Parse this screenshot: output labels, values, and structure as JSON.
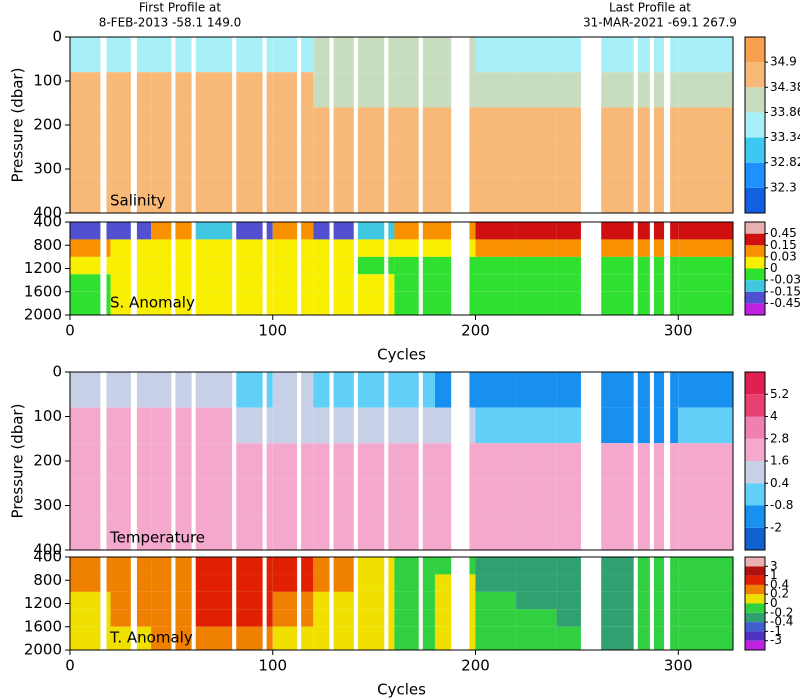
{
  "header": {
    "first_title": "First Profile at",
    "first_info": "8-FEB-2013   -58.1 149.0",
    "last_title": "Last Profile at",
    "last_info": "31-MAR-2021   -69.1 267.9"
  },
  "missing_cycles": [
    [
      15,
      18
    ],
    [
      30,
      33
    ],
    [
      50,
      52
    ],
    [
      60,
      62
    ],
    [
      80,
      82
    ],
    [
      95,
      97
    ],
    [
      112,
      114
    ],
    [
      128,
      130
    ],
    [
      140,
      142
    ],
    [
      155,
      157
    ],
    [
      172,
      174
    ],
    [
      188,
      197
    ],
    [
      252,
      262
    ],
    [
      278,
      280
    ],
    [
      286,
      288
    ],
    [
      293,
      296
    ]
  ],
  "chart_data": [
    {
      "type": "heatmap",
      "label": "Salinity",
      "ylabel": "Pressure (dbar)",
      "xlim": [
        0,
        327
      ],
      "ylim": [
        0,
        400
      ],
      "yticks": [
        0,
        100,
        200,
        300,
        400
      ],
      "x_edges": [
        0,
        20,
        40,
        60,
        80,
        100,
        120,
        140,
        160,
        180,
        200,
        220,
        240,
        260,
        280,
        300,
        327
      ],
      "y_edges": [
        0,
        80,
        160,
        240,
        320,
        400
      ],
      "levels": [
        32.3,
        32.82,
        33.34,
        33.86,
        34.38,
        34.9
      ],
      "colors": [
        "#1060e0",
        "#1e90ff",
        "#3cc8f0",
        "#a8f0f8",
        "#c8dcc0",
        "#f8b878",
        "#f8a050"
      ],
      "values": [
        [
          33.6,
          33.6,
          33.6,
          33.7,
          33.6,
          33.8,
          33.9,
          33.9,
          33.9,
          33.9,
          33.5,
          33.5,
          33.4,
          33.4,
          33.4,
          33.6
        ],
        [
          34.5,
          34.5,
          34.4,
          34.4,
          34.5,
          34.4,
          34.2,
          33.9,
          33.95,
          34.0,
          34.1,
          34.0,
          33.9,
          33.9,
          33.9,
          34.0
        ],
        [
          34.7,
          34.7,
          34.7,
          34.7,
          34.7,
          34.7,
          34.6,
          34.5,
          34.6,
          34.6,
          34.6,
          34.6,
          34.5,
          34.5,
          34.5,
          34.5
        ],
        [
          34.7,
          34.7,
          34.7,
          34.7,
          34.7,
          34.7,
          34.7,
          34.7,
          34.7,
          34.7,
          34.7,
          34.7,
          34.7,
          34.7,
          34.7,
          34.7
        ],
        [
          34.7,
          34.7,
          34.7,
          34.7,
          34.7,
          34.7,
          34.7,
          34.7,
          34.7,
          34.7,
          34.7,
          34.7,
          34.7,
          34.7,
          34.7,
          34.7
        ]
      ]
    },
    {
      "type": "heatmap",
      "label": "S. Anomaly",
      "xlabel": "Cycles",
      "xlim": [
        0,
        327
      ],
      "xticks": [
        0,
        100,
        200,
        300
      ],
      "ylim": [
        400,
        2000
      ],
      "yticks": [
        400,
        800,
        1200,
        1600,
        2000
      ],
      "x_edges": [
        0,
        20,
        40,
        60,
        80,
        100,
        120,
        140,
        160,
        180,
        200,
        220,
        240,
        260,
        280,
        300,
        327
      ],
      "y_edges": [
        400,
        700,
        1000,
        1300,
        1600,
        2000
      ],
      "levels": [
        -0.45,
        -0.15,
        -0.03,
        0,
        0.03,
        0.15,
        0.45
      ],
      "colors": [
        "#c020e0",
        "#5050d0",
        "#40c8e0",
        "#30e030",
        "#f8f000",
        "#f89000",
        "#d01010",
        "#e8b0b0"
      ],
      "values": [
        [
          -0.2,
          -0.2,
          0.05,
          -0.1,
          -0.2,
          0.05,
          -0.2,
          -0.1,
          0.05,
          0.05,
          0.2,
          0.3,
          0.3,
          0.2,
          0.2,
          0.2
        ],
        [
          0.05,
          0.02,
          0.02,
          0.02,
          0.02,
          0.02,
          0.02,
          0.02,
          0,
          0,
          0.1,
          0.1,
          0.1,
          0.1,
          0.1,
          0.1
        ],
        [
          0.02,
          0.02,
          0.01,
          0.01,
          0.01,
          0.01,
          0.02,
          -0.01,
          -0.01,
          -0.01,
          -0.01,
          -0.01,
          -0.01,
          -0.01,
          -0.01,
          -0.01
        ],
        [
          -0.01,
          0.01,
          0.01,
          0.01,
          0.01,
          0.01,
          0.02,
          0.01,
          -0.01,
          -0.01,
          -0.01,
          -0.01,
          -0.01,
          -0.01,
          -0.01,
          -0.01
        ],
        [
          -0.01,
          0.01,
          0.01,
          0.01,
          0.01,
          0.01,
          0.01,
          0.01,
          -0.01,
          -0.01,
          -0.01,
          -0.01,
          -0.01,
          -0.01,
          -0.01,
          -0.01
        ]
      ]
    },
    {
      "type": "heatmap",
      "label": "Temperature",
      "ylabel": "Pressure (dbar)",
      "xlim": [
        0,
        327
      ],
      "ylim": [
        0,
        400
      ],
      "yticks": [
        0,
        100,
        200,
        300,
        400
      ],
      "x_edges": [
        0,
        20,
        40,
        60,
        80,
        100,
        120,
        140,
        160,
        180,
        200,
        220,
        240,
        260,
        280,
        300,
        327
      ],
      "y_edges": [
        0,
        80,
        160,
        240,
        320,
        400
      ],
      "levels": [
        -2,
        -0.8,
        0.4,
        1.6,
        2.8,
        4,
        5.2
      ],
      "colors": [
        "#1060d0",
        "#1890f0",
        "#60d0f8",
        "#c8d0e8",
        "#f4a8cc",
        "#f080b0",
        "#e84070",
        "#e02050"
      ],
      "values": [
        [
          0.5,
          0.8,
          1.0,
          1.2,
          -0.5,
          0.5,
          -0.5,
          0.0,
          -0.5,
          -1.0,
          -1.5,
          -1.5,
          -1.0,
          -1.5,
          -1.5,
          -1.5
        ],
        [
          1.8,
          1.8,
          1.8,
          1.9,
          1.5,
          1.2,
          1.5,
          0.8,
          1.0,
          1.0,
          -0.5,
          -0.5,
          -0.8,
          -1.0,
          -1.0,
          -0.5
        ],
        [
          2.0,
          2.0,
          2.0,
          2.0,
          2.0,
          2.0,
          2.0,
          1.9,
          1.9,
          1.9,
          1.9,
          1.9,
          1.9,
          1.9,
          1.9,
          1.9
        ],
        [
          2.0,
          2.0,
          2.0,
          2.0,
          2.0,
          2.0,
          2.0,
          2.0,
          2.0,
          2.0,
          2.0,
          2.0,
          2.0,
          2.0,
          2.0,
          2.0
        ],
        [
          2.0,
          2.0,
          2.0,
          2.0,
          2.0,
          2.0,
          2.0,
          2.0,
          2.0,
          2.0,
          2.0,
          2.0,
          2.0,
          2.0,
          2.0,
          2.0
        ]
      ]
    },
    {
      "type": "heatmap",
      "label": "T. Anomaly",
      "xlabel": "Cycles",
      "xlim": [
        0,
        327
      ],
      "xticks": [
        0,
        100,
        200,
        300
      ],
      "ylim": [
        400,
        2000
      ],
      "yticks": [
        400,
        800,
        1200,
        1600,
        2000
      ],
      "x_edges": [
        0,
        20,
        40,
        60,
        80,
        100,
        120,
        140,
        160,
        180,
        200,
        220,
        240,
        260,
        280,
        300,
        327
      ],
      "y_edges": [
        400,
        700,
        1000,
        1300,
        1600,
        2000
      ],
      "levels": [
        -3,
        -1,
        -0.4,
        -0.2,
        0,
        0.2,
        0.4,
        1,
        3
      ],
      "colors": [
        "#c020e0",
        "#5030c0",
        "#4060d0",
        "#30a070",
        "#30d040",
        "#f0e000",
        "#f08000",
        "#e02000",
        "#b01010",
        "#e8b0b0"
      ],
      "values": [
        [
          0.3,
          0.3,
          0.3,
          0.5,
          0.5,
          0.4,
          0.3,
          0.1,
          -0.1,
          -0.1,
          -0.3,
          -0.3,
          -0.3,
          -0.3,
          -0.1,
          -0.1
        ],
        [
          0.3,
          0.3,
          0.3,
          0.5,
          0.5,
          0.5,
          0.3,
          0.1,
          -0.1,
          0.1,
          -0.3,
          -0.3,
          -0.3,
          -0.3,
          -0.1,
          -0.1
        ],
        [
          0.1,
          0.3,
          0.3,
          0.5,
          0.5,
          0.3,
          0.1,
          0.1,
          -0.1,
          0.1,
          -0.1,
          -0.3,
          -0.3,
          -0.3,
          -0.1,
          -0.1
        ],
        [
          0.1,
          0.3,
          0.3,
          0.5,
          0.5,
          0.3,
          0.1,
          0.1,
          -0.1,
          0.1,
          -0.1,
          -0.1,
          -0.3,
          -0.3,
          -0.1,
          -0.1
        ],
        [
          0.1,
          0.1,
          0.3,
          0.3,
          0.3,
          0.1,
          0.1,
          0.1,
          -0.1,
          0.1,
          -0.1,
          -0.1,
          -0.1,
          -0.3,
          -0.1,
          -0.1
        ]
      ]
    }
  ]
}
